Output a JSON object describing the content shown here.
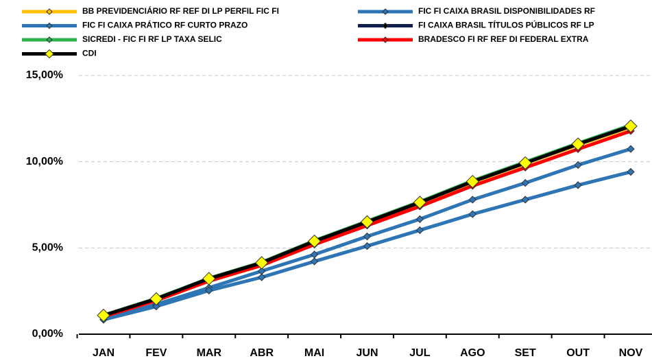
{
  "chart_data": {
    "type": "line",
    "categories": [
      "JAN",
      "FEV",
      "MAR",
      "ABR",
      "MAI",
      "JUN",
      "JUL",
      "AGO",
      "SET",
      "OUT",
      "NOV"
    ],
    "ylim": [
      0,
      15
    ],
    "yticks": [
      {
        "value": 0,
        "label": "0,00%"
      },
      {
        "value": 5,
        "label": "5,00%"
      },
      {
        "value": 10,
        "label": "10,00%"
      },
      {
        "value": 15,
        "label": "15,00%"
      }
    ],
    "grid": true,
    "series": [
      {
        "name": "BB PREVIDENCIÁRIO RF REF DI LP PERFIL FIC FI",
        "color": "#ffc000",
        "marker_color": "#ffc000",
        "values": [
          1.07,
          2.03,
          3.19,
          4.11,
          5.36,
          6.48,
          7.6,
          8.81,
          9.89,
          10.97,
          12.0
        ]
      },
      {
        "name": "FIC FI CAIXA BRASIL DISPONIBILIDADES RF",
        "color": "#2e75b6",
        "marker_color": "#2e75b6",
        "values": [
          0.84,
          1.73,
          2.69,
          3.66,
          4.62,
          5.67,
          6.67,
          7.8,
          8.77,
          9.81,
          10.74
        ]
      },
      {
        "name": "FIC FI CAIXA PRÁTICO RF CURTO PRAZO",
        "color": "#2e75b6",
        "marker_color": "#2e75b6",
        "values": [
          0.84,
          1.61,
          2.53,
          3.3,
          4.22,
          5.11,
          6.03,
          6.96,
          7.8,
          8.64,
          9.41
        ]
      },
      {
        "name": "FI CAIXA BRASIL TÍTULOS PÚBLICOS RF LP",
        "color": "#0e1f4d",
        "marker_color": "#000000",
        "values": [
          1.09,
          2.05,
          3.22,
          4.14,
          5.39,
          6.51,
          7.64,
          8.85,
          9.93,
          11.02,
          12.06
        ]
      },
      {
        "name": "SICREDI - FIC FI RF LP TAXA SELIC",
        "color": "#2eb24e",
        "marker_color": "#2eb24e",
        "values": [
          1.1,
          2.07,
          3.24,
          4.17,
          5.42,
          6.55,
          7.68,
          8.9,
          9.98,
          11.07,
          12.12
        ]
      },
      {
        "name": "BRADESCO FI RF REF DI FEDERAL EXTRA",
        "color": "#ff0000",
        "marker_color": "#ff0000",
        "values": [
          1.02,
          1.95,
          3.08,
          3.99,
          5.2,
          6.3,
          7.41,
          8.6,
          9.66,
          10.73,
          11.78
        ]
      },
      {
        "name": "CDI",
        "color": "#000000",
        "marker_color": "#ffff00",
        "values": [
          1.09,
          2.05,
          3.22,
          4.14,
          5.39,
          6.51,
          7.64,
          8.85,
          9.93,
          11.02,
          12.06
        ]
      }
    ]
  }
}
